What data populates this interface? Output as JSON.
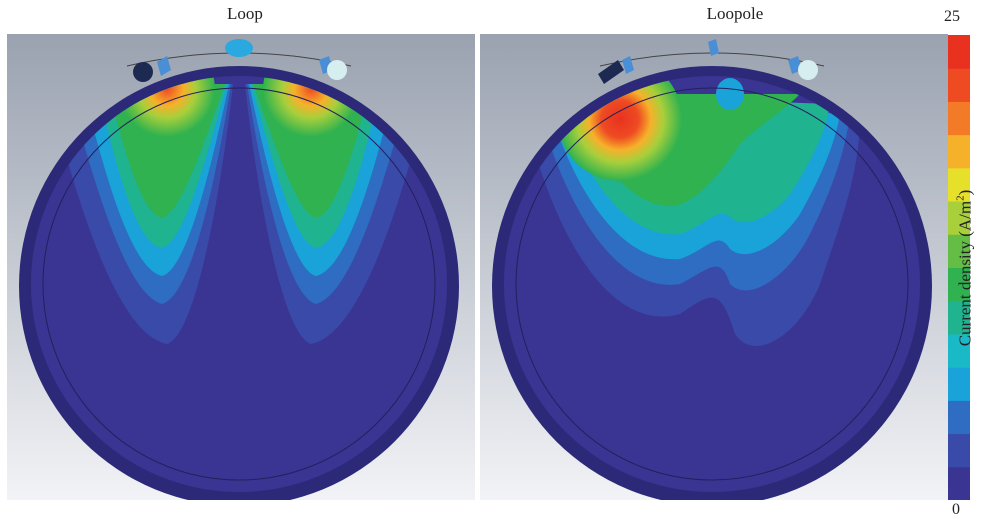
{
  "panels": [
    {
      "title": "Loop"
    },
    {
      "title": "Loopole"
    }
  ],
  "colorbar": {
    "max_label": "25",
    "min_label": "0",
    "quantity": "Current density (A/m",
    "unit_exponent": "2",
    "close_paren": ")",
    "colors": [
      "#3a3593",
      "#3a4aa8",
      "#2e6dc1",
      "#1aa3d9",
      "#19b9c8",
      "#1fb38f",
      "#2fb24f",
      "#64bd45",
      "#a9cf3b",
      "#e7e02a",
      "#f6b12a",
      "#f37a26",
      "#ee4b23",
      "#e8321f"
    ]
  }
}
